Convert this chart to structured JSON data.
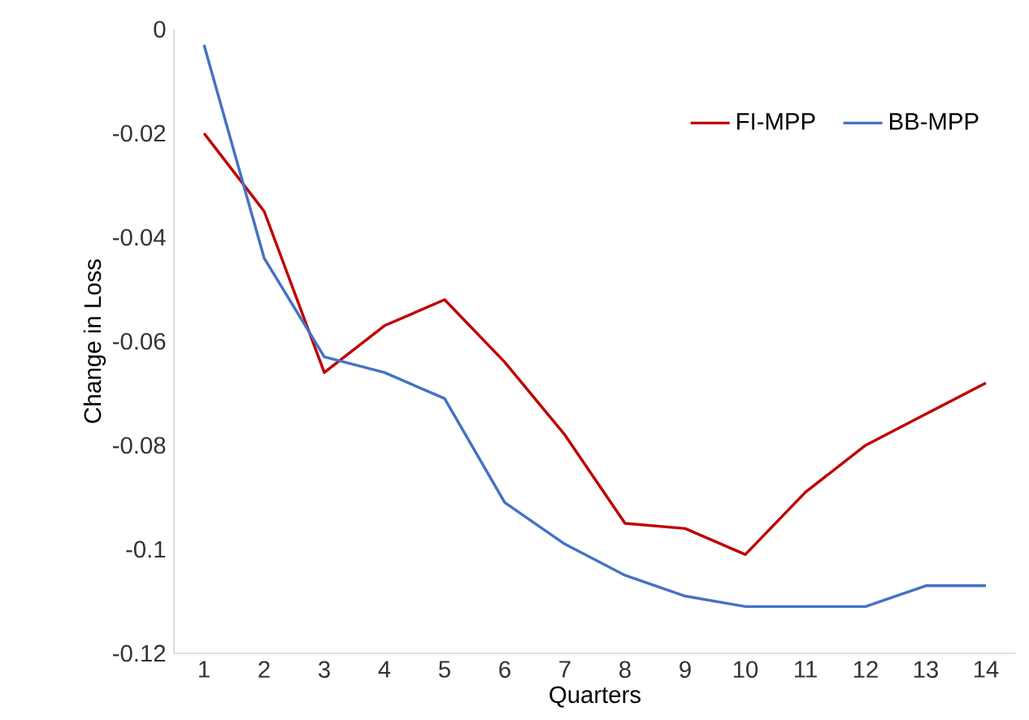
{
  "chart_data": {
    "type": "line",
    "xlabel": "Quarters",
    "ylabel": "Change in Loss",
    "categories": [
      "1",
      "2",
      "3",
      "4",
      "5",
      "6",
      "7",
      "8",
      "9",
      "10",
      "11",
      "12",
      "13",
      "14"
    ],
    "series": [
      {
        "name": "FI-MPP",
        "color": "#c00000",
        "values": [
          -0.02,
          -0.035,
          -0.066,
          -0.057,
          -0.052,
          -0.064,
          -0.078,
          -0.095,
          -0.096,
          -0.101,
          -0.089,
          -0.08,
          -0.074,
          -0.068
        ]
      },
      {
        "name": "BB-MPP",
        "color": "#4472c4",
        "values": [
          -0.003,
          -0.044,
          -0.063,
          -0.066,
          -0.071,
          -0.091,
          -0.099,
          -0.105,
          -0.109,
          -0.111,
          -0.111,
          -0.111,
          -0.107,
          -0.107
        ]
      }
    ],
    "ylim": [
      -0.12,
      0
    ],
    "yticks": [
      0,
      -0.02,
      -0.04,
      -0.06,
      -0.08,
      -0.1,
      -0.12
    ],
    "grid": false,
    "legend": "top right",
    "marker": "none",
    "line_style": "solid"
  }
}
